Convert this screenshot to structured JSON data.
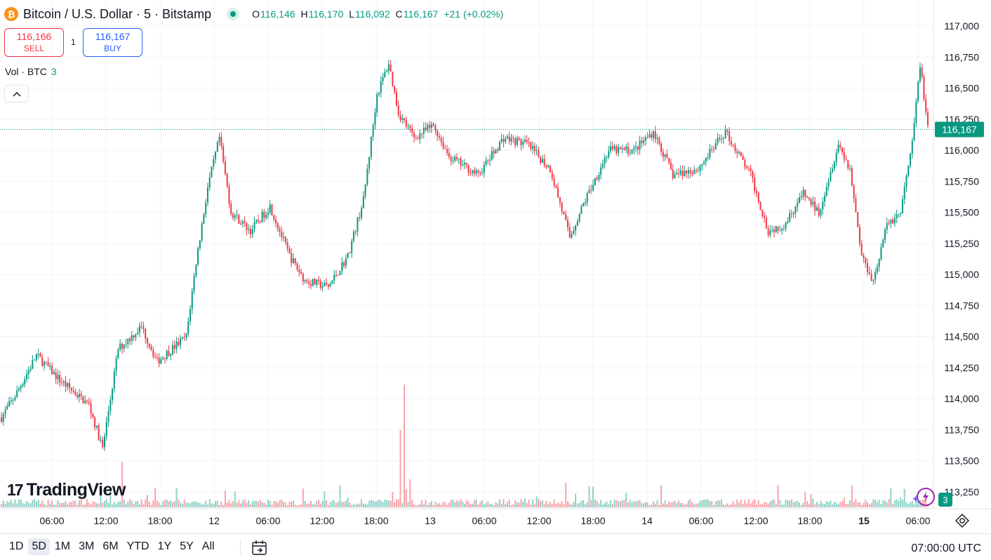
{
  "header": {
    "symbol_title": "Bitcoin / U.S. Dollar · 5 · Bitstamp",
    "coin_glyph": "₿",
    "ohlc": [
      {
        "key": "O",
        "value": "116,146"
      },
      {
        "key": "H",
        "value": "116,170"
      },
      {
        "key": "L",
        "value": "116,092"
      },
      {
        "key": "C",
        "value": "116,167"
      },
      {
        "key": "",
        "value": "+21 (+0.02%)"
      }
    ]
  },
  "trade": {
    "sell_price": "116,166",
    "sell_label": "SELL",
    "spread": "1",
    "buy_price": "116,167",
    "buy_label": "BUY"
  },
  "volume_legend": {
    "label": "Vol · BTC",
    "value": "3"
  },
  "branding": {
    "name": "TradingView",
    "mark": "17"
  },
  "bottom_bar": {
    "ranges": [
      "1D",
      "5D",
      "1M",
      "3M",
      "6M",
      "YTD",
      "1Y",
      "5Y",
      "All"
    ],
    "active_range": "5D",
    "clock": "07:00:00 UTC"
  },
  "badge_count": "3",
  "colors": {
    "up": "#089981",
    "down": "#f23645",
    "grid": "#f0f3fa",
    "accent": "#2962ff"
  },
  "chart_data": {
    "type": "candlestick",
    "symbol": "BTCUSD",
    "interval_minutes": 5,
    "exchange": "Bitstamp",
    "y_axis": {
      "ticks": [
        113250,
        113500,
        113750,
        114000,
        114250,
        114500,
        114750,
        115000,
        115250,
        115500,
        115750,
        116000,
        116250,
        116500,
        116750,
        117000
      ],
      "tick_labels": [
        "113,250",
        "113,500",
        "113,750",
        "114,000",
        "114,250",
        "114,500",
        "114,750",
        "115,000",
        "115,250",
        "115,500",
        "115,750",
        "116,000",
        "116,250",
        "116,500",
        "116,750",
        "117,000"
      ],
      "range": [
        113100,
        117100
      ],
      "side": "right"
    },
    "x_axis": {
      "tick_labels": [
        "06:00",
        "12:00",
        "18:00",
        "12",
        "06:00",
        "12:00",
        "18:00",
        "13",
        "06:00",
        "12:00",
        "18:00",
        "14",
        "06:00",
        "12:00",
        "18:00",
        "15",
        "06:00"
      ],
      "bold_labels": [
        "15"
      ]
    },
    "last_price": 116167,
    "last_price_label": "116,167",
    "price_path": [
      {
        "i": 0,
        "p": 113850
      },
      {
        "i": 8,
        "p": 114050
      },
      {
        "i": 18,
        "p": 114350
      },
      {
        "i": 30,
        "p": 114150
      },
      {
        "i": 45,
        "p": 113950
      },
      {
        "i": 52,
        "p": 113600
      },
      {
        "i": 60,
        "p": 114400
      },
      {
        "i": 72,
        "p": 114580
      },
      {
        "i": 80,
        "p": 114300
      },
      {
        "i": 95,
        "p": 114500
      },
      {
        "i": 100,
        "p": 115100
      },
      {
        "i": 106,
        "p": 115700
      },
      {
        "i": 112,
        "p": 116100
      },
      {
        "i": 118,
        "p": 115500
      },
      {
        "i": 128,
        "p": 115350
      },
      {
        "i": 138,
        "p": 115550
      },
      {
        "i": 148,
        "p": 115150
      },
      {
        "i": 156,
        "p": 114950
      },
      {
        "i": 168,
        "p": 114900
      },
      {
        "i": 178,
        "p": 115150
      },
      {
        "i": 186,
        "p": 115600
      },
      {
        "i": 193,
        "p": 116450
      },
      {
        "i": 199,
        "p": 116700
      },
      {
        "i": 204,
        "p": 116300
      },
      {
        "i": 212,
        "p": 116100
      },
      {
        "i": 222,
        "p": 116200
      },
      {
        "i": 230,
        "p": 115950
      },
      {
        "i": 245,
        "p": 115800
      },
      {
        "i": 258,
        "p": 116100
      },
      {
        "i": 270,
        "p": 116050
      },
      {
        "i": 282,
        "p": 115850
      },
      {
        "i": 292,
        "p": 115300
      },
      {
        "i": 300,
        "p": 115600
      },
      {
        "i": 312,
        "p": 116000
      },
      {
        "i": 325,
        "p": 116000
      },
      {
        "i": 335,
        "p": 116150
      },
      {
        "i": 345,
        "p": 115800
      },
      {
        "i": 358,
        "p": 115850
      },
      {
        "i": 372,
        "p": 116150
      },
      {
        "i": 385,
        "p": 115800
      },
      {
        "i": 394,
        "p": 115350
      },
      {
        "i": 402,
        "p": 115400
      },
      {
        "i": 412,
        "p": 115650
      },
      {
        "i": 420,
        "p": 115500
      },
      {
        "i": 430,
        "p": 116050
      },
      {
        "i": 436,
        "p": 115850
      },
      {
        "i": 442,
        "p": 115150
      },
      {
        "i": 448,
        "p": 114950
      },
      {
        "i": 455,
        "p": 115400
      },
      {
        "i": 462,
        "p": 115500
      },
      {
        "i": 468,
        "p": 116050
      },
      {
        "i": 472,
        "p": 116700
      },
      {
        "i": 476,
        "p": 116167
      }
    ],
    "total_candles": 477
  }
}
